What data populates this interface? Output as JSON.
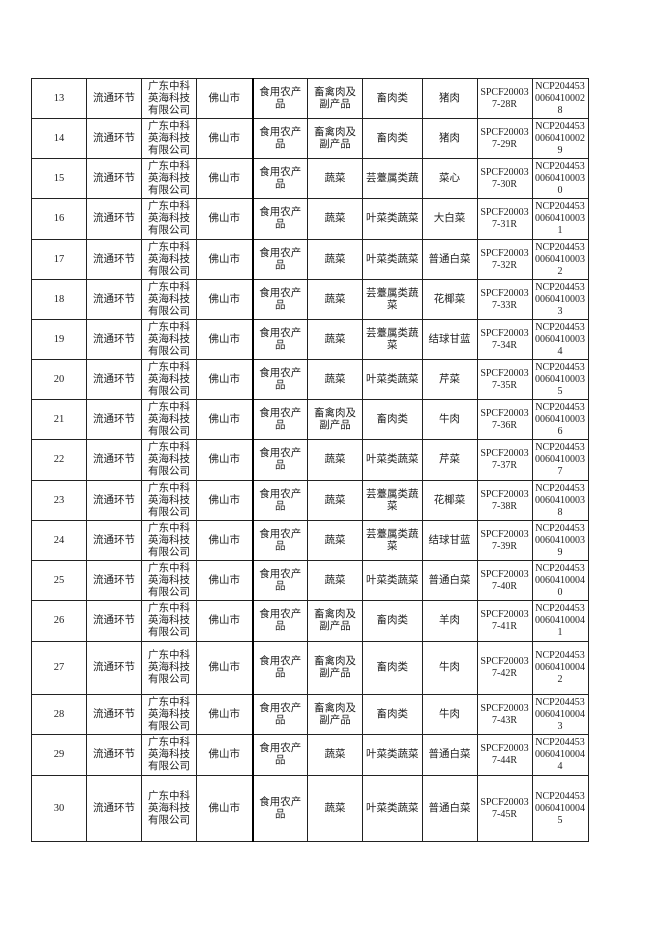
{
  "table": {
    "rows": [
      [
        "13",
        "流通环节",
        "广东中科英海科技有限公司",
        "佛山市",
        "食用农产品",
        "畜禽肉及副产品",
        "畜肉类",
        "猪肉",
        "SPCF200037-28R",
        "NCP20445300604100028"
      ],
      [
        "14",
        "流通环节",
        "广东中科英海科技有限公司",
        "佛山市",
        "食用农产品",
        "畜禽肉及副产品",
        "畜肉类",
        "猪肉",
        "SPCF200037-29R",
        "NCP20445300604100029"
      ],
      [
        "15",
        "流通环节",
        "广东中科英海科技有限公司",
        "佛山市",
        "食用农产品",
        "蔬菜",
        "芸薹属类蔬",
        "菜心",
        "SPCF200037-30R",
        "NCP20445300604100030"
      ],
      [
        "16",
        "流通环节",
        "广东中科英海科技有限公司",
        "佛山市",
        "食用农产品",
        "蔬菜",
        "叶菜类蔬菜",
        "大白菜",
        "SPCF200037-31R",
        "NCP20445300604100031"
      ],
      [
        "17",
        "流通环节",
        "广东中科英海科技有限公司",
        "佛山市",
        "食用农产品",
        "蔬菜",
        "叶菜类蔬菜",
        "普通白菜",
        "SPCF200037-32R",
        "NCP20445300604100032"
      ],
      [
        "18",
        "流通环节",
        "广东中科英海科技有限公司",
        "佛山市",
        "食用农产品",
        "蔬菜",
        "芸薹属类蔬菜",
        "花椰菜",
        "SPCF200037-33R",
        "NCP20445300604100033"
      ],
      [
        "19",
        "流通环节",
        "广东中科英海科技有限公司",
        "佛山市",
        "食用农产品",
        "蔬菜",
        "芸薹属类蔬菜",
        "结球甘蓝",
        "SPCF200037-34R",
        "NCP20445300604100034"
      ],
      [
        "20",
        "流通环节",
        "广东中科英海科技有限公司",
        "佛山市",
        "食用农产品",
        "蔬菜",
        "叶菜类蔬菜",
        "芹菜",
        "SPCF200037-35R",
        "NCP20445300604100035"
      ],
      [
        "21",
        "流通环节",
        "广东中科英海科技有限公司",
        "佛山市",
        "食用农产品",
        "畜禽肉及副产品",
        "畜肉类",
        "牛肉",
        "SPCF200037-36R",
        "NCP20445300604100036"
      ],
      [
        "22",
        "流通环节",
        "广东中科英海科技有限公司",
        "佛山市",
        "食用农产品",
        "蔬菜",
        "叶菜类蔬菜",
        "芹菜",
        "SPCF200037-37R",
        "NCP20445300604100037"
      ],
      [
        "23",
        "流通环节",
        "广东中科英海科技有限公司",
        "佛山市",
        "食用农产品",
        "蔬菜",
        "芸薹属类蔬菜",
        "花椰菜",
        "SPCF200037-38R",
        "NCP20445300604100038"
      ],
      [
        "24",
        "流通环节",
        "广东中科英海科技有限公司",
        "佛山市",
        "食用农产品",
        "蔬菜",
        "芸薹属类蔬菜",
        "结球甘蓝",
        "SPCF200037-39R",
        "NCP20445300604100039"
      ],
      [
        "25",
        "流通环节",
        "广东中科英海科技有限公司",
        "佛山市",
        "食用农产品",
        "蔬菜",
        "叶菜类蔬菜",
        "普通白菜",
        "SPCF200037-40R",
        "NCP20445300604100040"
      ],
      [
        "26",
        "流通环节",
        "广东中科英海科技有限公司",
        "佛山市",
        "食用农产品",
        "畜禽肉及副产品",
        "畜肉类",
        "羊肉",
        "SPCF200037-41R",
        "NCP20445300604100041"
      ],
      [
        "27",
        "流通环节",
        "广东中科英海科技有限公司",
        "佛山市",
        "食用农产品",
        "畜禽肉及副产品",
        "畜肉类",
        "牛肉",
        "SPCF200037-42R",
        "NCP20445300604100042"
      ],
      [
        "28",
        "流通环节",
        "广东中科英海科技有限公司",
        "佛山市",
        "食用农产品",
        "畜禽肉及副产品",
        "畜肉类",
        "牛肉",
        "SPCF200037-43R",
        "NCP20445300604100043"
      ],
      [
        "29",
        "流通环节",
        "广东中科英海科技有限公司",
        "佛山市",
        "食用农产品",
        "蔬菜",
        "叶菜类蔬菜",
        "普通白菜",
        "SPCF200037-44R",
        "NCP20445300604100044"
      ],
      [
        "30",
        "流通环节",
        "广东中科英海科技有限公司",
        "佛山市",
        "食用农产品",
        "蔬菜",
        "叶菜类蔬菜",
        "普通白菜",
        "SPCF200037-45R",
        "NCP20445300604100045"
      ]
    ]
  }
}
